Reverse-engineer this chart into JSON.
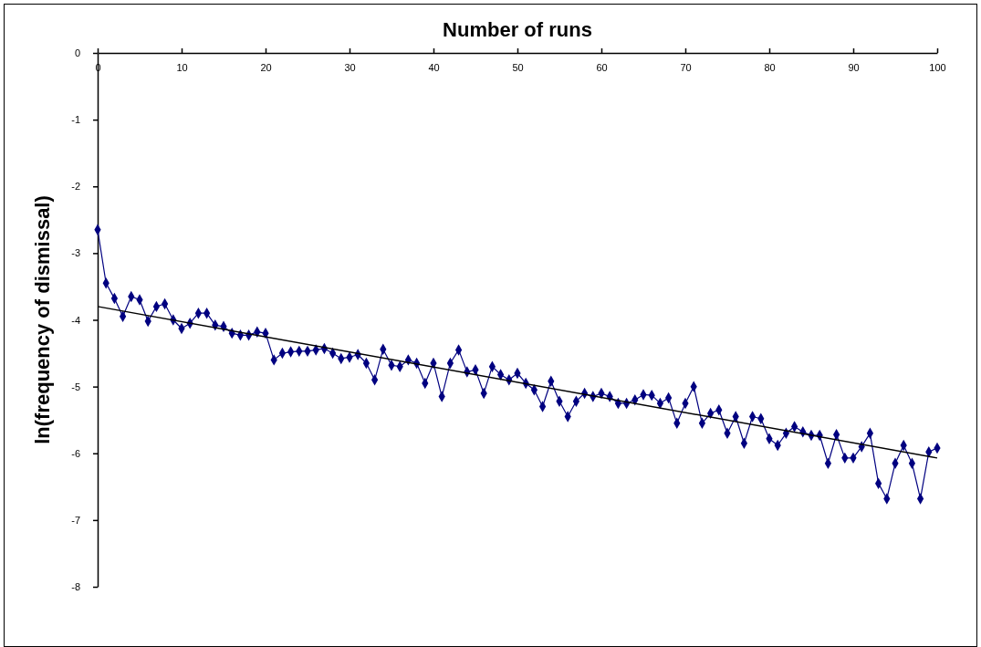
{
  "chart_data": {
    "type": "line",
    "title": "Number of runs",
    "ylabel": "ln(frequency of dismissal)",
    "xlim": [
      0,
      100
    ],
    "ylim": [
      -8,
      0
    ],
    "xticks": [
      0,
      10,
      20,
      30,
      40,
      50,
      60,
      70,
      80,
      90,
      100
    ],
    "yticks": [
      0,
      -1,
      -2,
      -3,
      -4,
      -5,
      -6,
      -7,
      -8
    ],
    "grid": false,
    "marker": "diamond",
    "line_style": "solid",
    "series": [
      {
        "color": "#000080",
        "x": [
          0,
          1,
          2,
          3,
          4,
          5,
          6,
          7,
          8,
          9,
          10,
          11,
          12,
          13,
          14,
          15,
          16,
          17,
          18,
          19,
          20,
          21,
          22,
          23,
          24,
          25,
          26,
          27,
          28,
          29,
          30,
          31,
          32,
          33,
          34,
          35,
          36,
          37,
          38,
          39,
          40,
          41,
          42,
          43,
          44,
          45,
          46,
          47,
          48,
          49,
          50,
          51,
          52,
          53,
          54,
          55,
          56,
          57,
          58,
          59,
          60,
          61,
          62,
          63,
          64,
          65,
          66,
          67,
          68,
          69,
          70,
          71,
          72,
          73,
          74,
          75,
          76,
          77,
          78,
          79,
          80,
          81,
          82,
          83,
          84,
          85,
          86,
          87,
          88,
          89,
          90,
          91,
          92,
          93,
          94,
          95,
          96,
          97,
          98,
          99,
          100
        ],
        "values": [
          -2.65,
          -3.45,
          -3.68,
          -3.95,
          -3.65,
          -3.7,
          -4.02,
          -3.8,
          -3.76,
          -4.0,
          -4.13,
          -4.05,
          -3.9,
          -3.9,
          -4.08,
          -4.1,
          -4.2,
          -4.23,
          -4.23,
          -4.18,
          -4.2,
          -4.6,
          -4.5,
          -4.48,
          -4.47,
          -4.47,
          -4.45,
          -4.43,
          -4.5,
          -4.58,
          -4.56,
          -4.52,
          -4.65,
          -4.9,
          -4.44,
          -4.68,
          -4.7,
          -4.6,
          -4.65,
          -4.95,
          -4.65,
          -5.15,
          -4.65,
          -4.45,
          -4.78,
          -4.75,
          -5.1,
          -4.7,
          -4.82,
          -4.9,
          -4.8,
          -4.95,
          -5.05,
          -5.3,
          -4.92,
          -5.22,
          -5.45,
          -5.22,
          -5.1,
          -5.15,
          -5.1,
          -5.15,
          -5.25,
          -5.25,
          -5.2,
          -5.12,
          -5.13,
          -5.25,
          -5.17,
          -5.55,
          -5.25,
          -5.0,
          -5.55,
          -5.4,
          -5.35,
          -5.7,
          -5.45,
          -5.85,
          -5.45,
          -5.48,
          -5.78,
          -5.88,
          -5.7,
          -5.6,
          -5.68,
          -5.73,
          -5.73,
          -6.15,
          -5.72,
          -6.07,
          -6.07,
          -5.9,
          -5.7,
          -6.45,
          -6.68,
          -6.15,
          -5.88,
          -6.15,
          -6.68,
          -5.98,
          -5.92
        ]
      },
      {
        "type": "line",
        "color": "#000000",
        "marker": "none",
        "x": [
          0,
          100
        ],
        "values": [
          -3.8,
          -6.07
        ]
      }
    ]
  }
}
